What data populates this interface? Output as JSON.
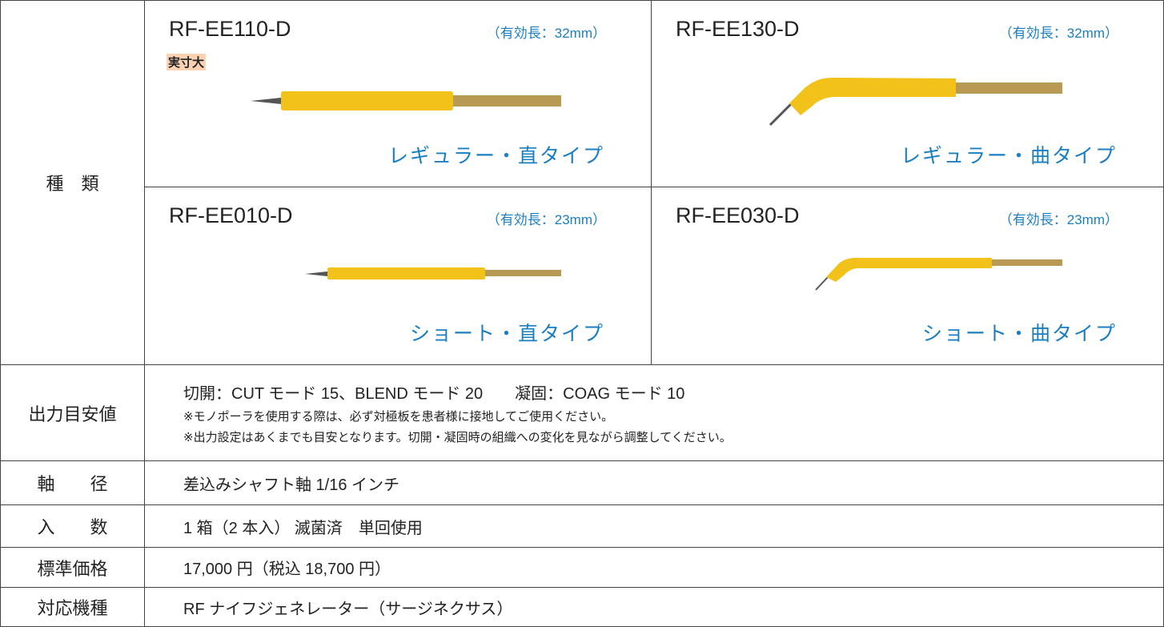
{
  "types": {
    "label": "種　類",
    "items": [
      {
        "model": "RF-EE110-D",
        "length": "（有効長：32mm）",
        "badge": "実寸大",
        "name": "レギュラー・直タイプ"
      },
      {
        "model": "RF-EE130-D",
        "length": "（有効長：32mm）",
        "name": "レギュラー・曲タイプ"
      },
      {
        "model": "RF-EE010-D",
        "length": "（有効長：23mm）",
        "name": "ショート・直タイプ"
      },
      {
        "model": "RF-EE030-D",
        "length": "（有効長：23mm）",
        "name": "ショート・曲タイプ"
      }
    ]
  },
  "rows": [
    {
      "label": "出力目安値",
      "lines": [
        "切開：CUT モード 15、BLEND モード 20　　凝固：COAG モード 10",
        "※モノポーラを使用する際は、必ず対極板を患者様に接地してご使用ください。",
        "※出力設定はあくまでも目安となります。切開・凝固時の組織への変化を見ながら調整してください。"
      ]
    },
    {
      "label": "軸　　径",
      "lines": [
        "差込みシャフト軸 1/16 インチ"
      ]
    },
    {
      "label": "入　　数",
      "lines": [
        "1 箱（2 本入） 滅菌済　単回使用"
      ]
    },
    {
      "label": "標準価格",
      "lines": [
        "17,000 円（税込 18,700 円）"
      ]
    },
    {
      "label": "対応機種",
      "lines": [
        "RF ナイフジェネレーター（サージネクサス）"
      ]
    }
  ]
}
